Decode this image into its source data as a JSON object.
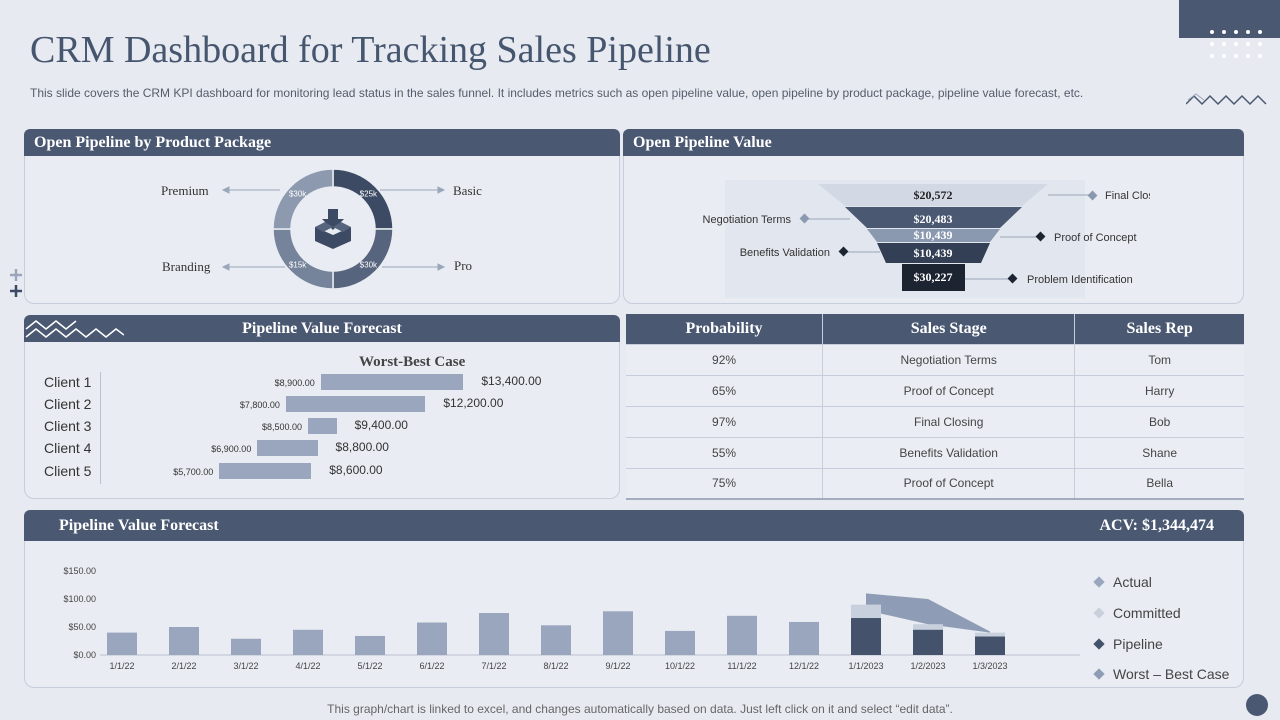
{
  "title": "CRM Dashboard for Tracking Sales Pipeline",
  "subtitle": "This slide covers the CRM KPI dashboard for monitoring lead status in the sales funnel. It includes metrics such as open pipeline value, open pipeline by product package, pipeline value forecast, etc.",
  "product_package": {
    "header": "Open Pipeline by Product Package",
    "labels": {
      "premium": "Premium",
      "basic": "Basic",
      "branding": "Branding",
      "pro": "Pro"
    },
    "slices": [
      {
        "name": "Basic",
        "label": "$25k",
        "color": "#3c4a64"
      },
      {
        "name": "Pro",
        "label": "$30k",
        "color": "#56647d"
      },
      {
        "name": "Branding",
        "label": "$15k",
        "color": "#75839b"
      },
      {
        "name": "Premium",
        "label": "$30k",
        "color": "#8c99ae"
      }
    ]
  },
  "open_pipeline_value": {
    "header": "Open Pipeline Value",
    "stages": [
      {
        "value": "$20,572",
        "label": "Final Closing"
      },
      {
        "value": "$20,483",
        "label": "Negotiation Terms"
      },
      {
        "value": "$10,439",
        "label": "Proof of Concept"
      },
      {
        "value": "$10,439",
        "label": "Benefits Validation"
      },
      {
        "value": "$30,227",
        "label": "Problem Identification"
      }
    ]
  },
  "forecast_clients": {
    "header": "Pipeline Value Forecast",
    "chart_title": "Worst-Best Case",
    "rows": [
      {
        "client": "Client 1",
        "low_label": "$8,900.00",
        "high_label": "$13,400.00",
        "low": 8900,
        "high": 13400
      },
      {
        "client": "Client 2",
        "low_label": "$7,800.00",
        "high_label": "$12,200.00",
        "low": 7800,
        "high": 12200
      },
      {
        "client": "Client 3",
        "low_label": "$8,500.00",
        "high_label": "$9,400.00",
        "low": 8500,
        "high": 9400
      },
      {
        "client": "Client 4",
        "low_label": "$6,900.00",
        "high_label": "$8,800.00",
        "low": 6900,
        "high": 8800
      },
      {
        "client": "Client 5",
        "low_label": "$5,700.00",
        "high_label": "$8,600.00",
        "low": 5700,
        "high": 8600
      }
    ]
  },
  "table": {
    "headers": [
      "Probability",
      "Sales Stage",
      "Sales Rep"
    ],
    "rows": [
      [
        "92%",
        "Negotiation Terms",
        "Tom"
      ],
      [
        "65%",
        "Proof of Concept",
        "Harry"
      ],
      [
        "97%",
        "Final Closing",
        "Bob"
      ],
      [
        "55%",
        "Benefits Validation",
        "Shane"
      ],
      [
        "75%",
        "Proof of Concept",
        "Bella"
      ]
    ]
  },
  "bottom": {
    "header": "Pipeline Value Forecast",
    "acv": "ACV: $1,344,474",
    "legend": [
      "Actual",
      "Committed",
      "Pipeline",
      "Worst – Best Case"
    ]
  },
  "chart_data": {
    "type": "bar",
    "title": "Pipeline Value Forecast",
    "categories": [
      "1/1/22",
      "2/1/22",
      "3/1/22",
      "4/1/22",
      "5/1/22",
      "6/1/22",
      "7/1/22",
      "8/1/22",
      "9/1/22",
      "10/1/22",
      "11/1/22",
      "12/1/22",
      "1/1/2023",
      "1/2/2023",
      "1/3/2023"
    ],
    "y_ticks": [
      "$0.00",
      "$50.00",
      "$100.00",
      "$150.00"
    ],
    "ylim": [
      0,
      150
    ],
    "series": [
      {
        "name": "Actual",
        "values": [
          40,
          50,
          29,
          45,
          34,
          58,
          75,
          53,
          78,
          43,
          70,
          59,
          null,
          null,
          null
        ]
      },
      {
        "name": "Committed",
        "values": [
          null,
          null,
          null,
          null,
          null,
          null,
          null,
          null,
          null,
          null,
          null,
          null,
          90,
          55,
          40
        ]
      },
      {
        "name": "Pipeline",
        "values": [
          null,
          null,
          null,
          null,
          null,
          null,
          null,
          null,
          null,
          null,
          null,
          null,
          66,
          45,
          33
        ]
      },
      {
        "name": "Worst – Best Case",
        "values": [
          null,
          null,
          null,
          null,
          null,
          null,
          null,
          null,
          null,
          null,
          null,
          null,
          [
            80,
            110
          ],
          [
            55,
            100
          ],
          [
            40,
            42
          ]
        ]
      }
    ],
    "colors": {
      "Actual": "#99a6bd",
      "Committed": "#c9d0dd",
      "Pipeline": "#44526c",
      "Worst – Best Case": "#8e9db5"
    }
  },
  "footer": "This graph/chart is linked to excel,  and changes automatically based on data. Just left click on it and select “edit data”."
}
